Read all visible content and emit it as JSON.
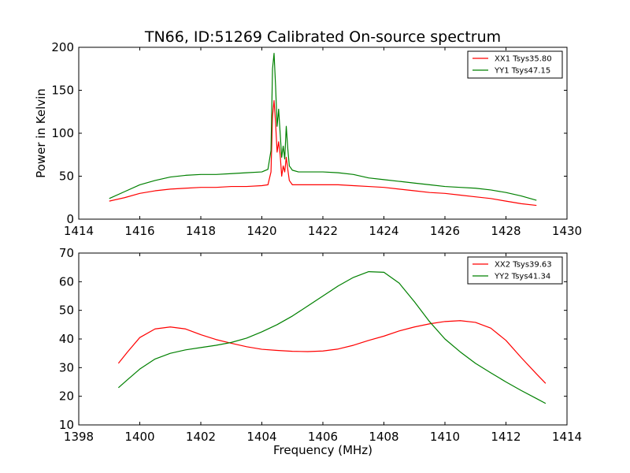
{
  "figure": {
    "title": "TN66, ID:51269 Calibrated On-source spectrum",
    "xlabel": "Frequency (MHz)",
    "ylabel": "Power in Kelvin"
  },
  "chart_data": [
    {
      "type": "line",
      "xlim": [
        1414,
        1430
      ],
      "ylim": [
        0,
        200
      ],
      "xticks": [
        1414,
        1416,
        1418,
        1420,
        1422,
        1424,
        1426,
        1428,
        1430
      ],
      "yticks": [
        0,
        50,
        100,
        150,
        200
      ],
      "grid": false,
      "legend": "top-right",
      "series": [
        {
          "name": "XX1 Tsys35.80",
          "color": "#ff0000",
          "x": [
            1415.0,
            1415.5,
            1416.0,
            1416.5,
            1417.0,
            1417.5,
            1418.0,
            1418.5,
            1419.0,
            1419.5,
            1420.0,
            1420.2,
            1420.3,
            1420.35,
            1420.4,
            1420.45,
            1420.5,
            1420.55,
            1420.6,
            1420.65,
            1420.7,
            1420.75,
            1420.8,
            1420.85,
            1420.9,
            1421.0,
            1421.2,
            1421.5,
            1422.0,
            1422.5,
            1423.0,
            1423.5,
            1424.0,
            1424.5,
            1425.0,
            1425.5,
            1426.0,
            1426.5,
            1427.0,
            1427.5,
            1428.0,
            1428.5,
            1429.0
          ],
          "y": [
            21,
            25,
            30,
            33,
            35,
            36,
            37,
            37,
            38,
            38,
            39,
            40,
            55,
            120,
            138,
            112,
            78,
            90,
            75,
            50,
            62,
            55,
            72,
            58,
            45,
            40,
            40,
            40,
            40,
            40,
            39,
            38,
            37,
            35,
            33,
            31,
            30,
            28,
            26,
            24,
            21,
            18,
            16
          ]
        },
        {
          "name": "YY1 Tsys47.15",
          "color": "#008000",
          "x": [
            1415.0,
            1415.5,
            1416.0,
            1416.5,
            1417.0,
            1417.5,
            1418.0,
            1418.5,
            1419.0,
            1419.5,
            1420.0,
            1420.2,
            1420.3,
            1420.35,
            1420.4,
            1420.45,
            1420.5,
            1420.55,
            1420.6,
            1420.65,
            1420.7,
            1420.75,
            1420.8,
            1420.85,
            1420.9,
            1421.0,
            1421.2,
            1421.5,
            1422.0,
            1422.5,
            1423.0,
            1423.5,
            1424.0,
            1424.5,
            1425.0,
            1425.5,
            1426.0,
            1426.5,
            1427.0,
            1427.5,
            1428.0,
            1428.5,
            1429.0
          ],
          "y": [
            24,
            32,
            40,
            45,
            49,
            51,
            52,
            52,
            53,
            54,
            55,
            58,
            80,
            175,
            193,
            155,
            108,
            128,
            100,
            72,
            85,
            70,
            108,
            82,
            62,
            57,
            55,
            55,
            55,
            54,
            52,
            48,
            46,
            44,
            42,
            40,
            38,
            37,
            36,
            34,
            31,
            27,
            22
          ]
        }
      ]
    },
    {
      "type": "line",
      "xlim": [
        1398,
        1414
      ],
      "ylim": [
        10,
        70
      ],
      "xticks": [
        1398,
        1400,
        1402,
        1404,
        1406,
        1408,
        1410,
        1412,
        1414
      ],
      "yticks": [
        10,
        20,
        30,
        40,
        50,
        60,
        70
      ],
      "grid": false,
      "legend": "top-right",
      "series": [
        {
          "name": "XX2 Tsys39.63",
          "color": "#ff0000",
          "x": [
            1399.3,
            1399.6,
            1400.0,
            1400.5,
            1401.0,
            1401.5,
            1402.0,
            1402.5,
            1403.0,
            1403.5,
            1404.0,
            1404.5,
            1405.0,
            1405.5,
            1406.0,
            1406.5,
            1407.0,
            1407.5,
            1408.0,
            1408.5,
            1409.0,
            1409.5,
            1410.0,
            1410.5,
            1411.0,
            1411.5,
            1412.0,
            1412.5,
            1413.0,
            1413.3
          ],
          "y": [
            31.5,
            35.5,
            40.5,
            43.5,
            44.2,
            43.5,
            41.5,
            39.8,
            38.5,
            37.3,
            36.4,
            36.0,
            35.7,
            35.6,
            35.8,
            36.5,
            37.8,
            39.5,
            41.0,
            42.8,
            44.2,
            45.3,
            46.1,
            46.4,
            45.8,
            43.8,
            39.5,
            33.5,
            27.8,
            24.5
          ]
        },
        {
          "name": "YY2 Tsys41.34",
          "color": "#008000",
          "x": [
            1399.3,
            1399.6,
            1400.0,
            1400.5,
            1401.0,
            1401.5,
            1402.0,
            1402.5,
            1403.0,
            1403.5,
            1404.0,
            1404.5,
            1405.0,
            1405.5,
            1406.0,
            1406.5,
            1407.0,
            1407.5,
            1408.0,
            1408.5,
            1409.0,
            1409.5,
            1410.0,
            1410.5,
            1411.0,
            1411.5,
            1412.0,
            1412.5,
            1413.0,
            1413.3
          ],
          "y": [
            23.0,
            25.8,
            29.5,
            33.0,
            35.0,
            36.2,
            37.0,
            37.8,
            38.8,
            40.3,
            42.5,
            45.0,
            48.0,
            51.5,
            55.0,
            58.5,
            61.5,
            63.5,
            63.3,
            59.5,
            53.0,
            46.0,
            40.0,
            35.5,
            31.5,
            28.2,
            25.0,
            22.0,
            19.2,
            17.5
          ]
        }
      ]
    }
  ]
}
